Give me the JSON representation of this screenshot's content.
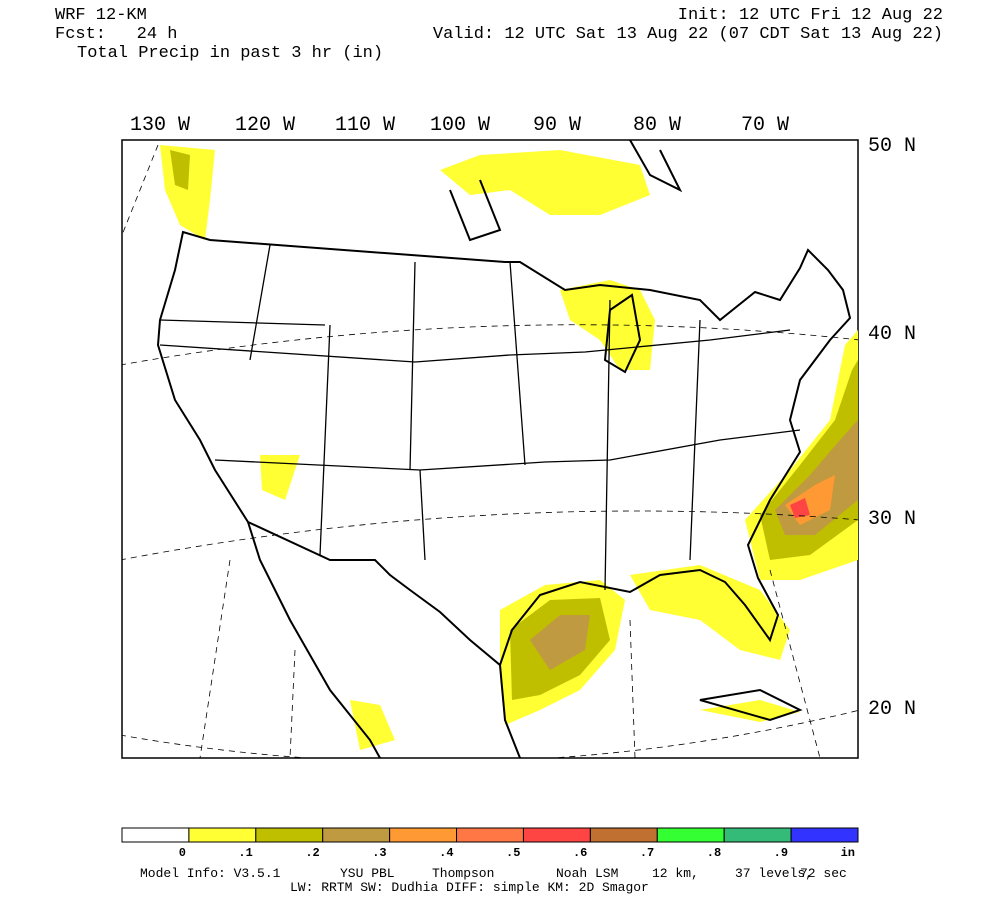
{
  "header": {
    "model": "WRF 12-KM",
    "forecast": "Fcst:   24 h",
    "field": "Total Precip in past 3 hr (in)",
    "init": "Init: 12 UTC Fri 12 Aug 22",
    "valid": "Valid: 12 UTC Sat 13 Aug 22 (07 CDT Sat 13 Aug 22)"
  },
  "map": {
    "longitude_labels": [
      "130 W",
      "120 W",
      "110 W",
      "100 W",
      "90 W",
      "80 W",
      "70 W"
    ],
    "latitude_labels": [
      "50 N",
      "40 N",
      "30 N",
      "20 N"
    ]
  },
  "colorbar": {
    "colors": [
      "#ffffff",
      "#ffff33",
      "#bfbf00",
      "#c09a40",
      "#ff9933",
      "#ff7744",
      "#ff4444",
      "#c07030",
      "#33ff33",
      "#33bb77",
      "#3333ff"
    ],
    "labels": [
      "0",
      ".1",
      ".2",
      ".3",
      ".4",
      ".5",
      ".6",
      ".7",
      ".8",
      ".9",
      "in"
    ]
  },
  "footer": {
    "line1": [
      "Model Info: V3.5.1",
      "YSU PBL",
      "Thompson",
      "Noah LSM",
      "12 km,",
      "37 levels,",
      "72 sec"
    ],
    "line2": "LW: RRTM SW: Dudhia  DIFF: simple KM: 2D Smagor"
  }
}
